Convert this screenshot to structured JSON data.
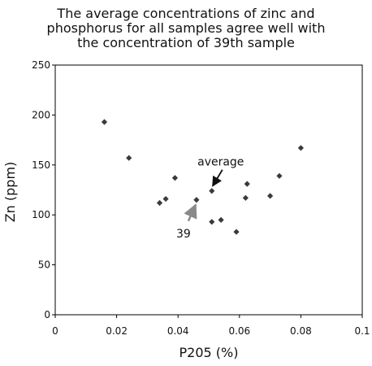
{
  "chart_data": {
    "type": "scatter",
    "title": [
      "The average concentrations of zinc and",
      "phosphorus for all samples agree well with",
      "the concentration of 39th sample"
    ],
    "xlabel": "P205 (%)",
    "ylabel": "Zn (ppm)",
    "xlim": [
      0,
      0.1
    ],
    "ylim": [
      0,
      250
    ],
    "xticks": [
      0,
      0.02,
      0.04,
      0.06,
      0.08,
      0.1
    ],
    "xtick_labels": [
      "0",
      "0.02",
      "0.04",
      "0.06",
      "0.08",
      "0.1"
    ],
    "yticks": [
      0,
      50,
      100,
      150,
      200,
      250
    ],
    "ytick_labels": [
      "0",
      "50",
      "100",
      "150",
      "200",
      "250"
    ],
    "grid": false,
    "marker": "diamond",
    "marker_color": "#3a3a3a",
    "series": [
      {
        "points": [
          {
            "x": 0.016,
            "y": 193
          },
          {
            "x": 0.024,
            "y": 157
          },
          {
            "x": 0.034,
            "y": 112
          },
          {
            "x": 0.036,
            "y": 116
          },
          {
            "x": 0.039,
            "y": 137
          },
          {
            "x": 0.046,
            "y": 115
          },
          {
            "x": 0.051,
            "y": 124
          },
          {
            "x": 0.051,
            "y": 93
          },
          {
            "x": 0.054,
            "y": 95
          },
          {
            "x": 0.059,
            "y": 83
          },
          {
            "x": 0.062,
            "y": 117
          },
          {
            "x": 0.0625,
            "y": 131
          },
          {
            "x": 0.07,
            "y": 119
          },
          {
            "x": 0.073,
            "y": 139
          },
          {
            "x": 0.08,
            "y": 167
          }
        ]
      }
    ],
    "annotations": [
      {
        "text": "average",
        "target": {
          "x": 0.051,
          "y": 124
        },
        "arrow_color": "#111111"
      },
      {
        "text": "39",
        "target": {
          "x": 0.046,
          "y": 115
        },
        "arrow_color": "#8a8a8a"
      }
    ]
  }
}
